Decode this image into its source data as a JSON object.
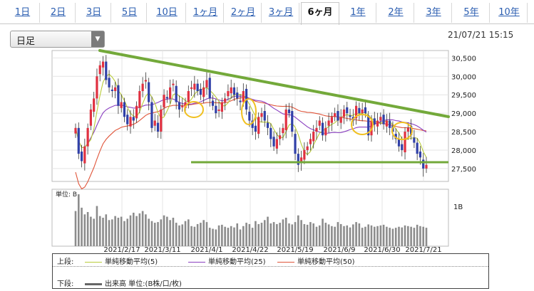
{
  "tabs": [
    "1日",
    "2日",
    "3日",
    "5日",
    "10日",
    "1ヶ月",
    "2ヶ月",
    "3ヶ月",
    "6ヶ月",
    "1年",
    "2年",
    "3年",
    "5年",
    "10年"
  ],
  "active_tab": "6ヶ月",
  "period_select": {
    "value": "日足",
    "arrow": "▼"
  },
  "timestamp": "21/07/21 15:15",
  "volume_panel": {
    "unit_label": "単位: B",
    "scale_label": "1B"
  },
  "legend": {
    "upper_label": "上段:",
    "lower_label": "下段:",
    "ma5": "単純移動平均(5)",
    "ma25": "単純移動平均(25)",
    "ma50": "単純移動平均(50)",
    "volume": "出来高 単位:(B株/口/枚)",
    "colors": {
      "ma5": "#b9cc3a",
      "ma25": "#8a3fc0",
      "ma50": "#e0553a",
      "up": "#e03040",
      "down": "#3040a8",
      "trend": "#73a93a",
      "highlight": "#f0c020",
      "volume": "#8c8c8c"
    }
  },
  "chart_data": {
    "type": "candlestick",
    "y_ticks": [
      30500,
      30000,
      29500,
      29000,
      28500,
      28000,
      27500
    ],
    "ylim": [
      27150,
      30700
    ],
    "x_tick_labels": [
      "2021/2/17",
      "2021/3/11",
      "2021/4/1",
      "2021/4/22",
      "2021/5/19",
      "2021/6/9",
      "2021/6/30",
      "2021/7/21"
    ],
    "closes": [
      28600,
      27900,
      27700,
      28100,
      28600,
      29100,
      29400,
      30000,
      30300,
      30400,
      29900,
      29700,
      29600,
      29700,
      29200,
      29300,
      28900,
      28700,
      28900,
      28800,
      29200,
      29600,
      29800,
      29900,
      29300,
      28600,
      28800,
      28500,
      29100,
      29500,
      29400,
      29700,
      29800,
      29300,
      29100,
      29200,
      29300,
      29600,
      29700,
      29800,
      29600,
      29500,
      29700,
      29900,
      29400,
      29200,
      29000,
      29100,
      29300,
      29400,
      29600,
      29700,
      29500,
      29400,
      29300,
      29600,
      29100,
      28800,
      28600,
      28500,
      28900,
      29000,
      28800,
      28600,
      28300,
      28100,
      28300,
      28400,
      28600,
      29100,
      29000,
      28500,
      27900,
      27600,
      27800,
      28000,
      28100,
      28300,
      28500,
      28600,
      28800,
      28400,
      28600,
      28800,
      28900,
      29000,
      28800,
      28900,
      29100,
      29000,
      28900,
      28800,
      29200,
      29000,
      29100,
      29000,
      28400,
      28800,
      28700,
      28800,
      28900,
      28700,
      28800,
      28600,
      28500,
      28300,
      28100,
      28000,
      28500,
      28600,
      28400,
      28200,
      27900,
      27800,
      27500,
      27600
    ],
    "volumes": [
      1.05,
      1.55,
      1.15,
      0.95,
      1.02,
      0.88,
      0.82,
      1.2,
      0.9,
      0.85,
      0.95,
      0.78,
      0.8,
      0.9,
      0.85,
      0.88,
      0.75,
      0.82,
      0.92,
      1.0,
      0.9,
      0.98,
      1.05,
      0.95,
      0.82,
      0.75,
      0.7,
      0.72,
      0.8,
      0.92,
      0.88,
      0.78,
      0.85,
      0.7,
      0.62,
      0.65,
      0.75,
      0.8,
      0.6,
      0.58,
      0.66,
      0.7,
      0.78,
      0.72,
      0.55,
      0.52,
      0.5,
      0.62,
      0.64,
      0.58,
      0.55,
      0.6,
      0.56,
      0.68,
      0.5,
      0.6,
      0.7,
      0.66,
      0.55,
      0.75,
      0.66,
      0.7,
      0.78,
      0.88,
      0.68,
      0.72,
      0.66,
      0.7,
      0.8,
      0.85,
      0.68,
      0.65,
      0.72,
      0.92,
      0.78,
      0.66,
      0.64,
      0.72,
      0.68,
      0.58,
      0.62,
      0.82,
      0.7,
      0.65,
      0.6,
      0.58,
      0.72,
      0.66,
      0.6,
      0.62,
      0.56,
      0.65,
      0.72,
      0.68,
      0.55,
      0.58,
      0.65,
      0.62,
      0.58,
      0.6,
      0.62,
      0.64,
      0.58,
      0.55,
      0.52,
      0.55,
      0.58,
      0.56,
      0.62,
      0.6,
      0.58,
      0.55,
      0.64,
      0.6,
      0.58,
      0.55
    ],
    "volume_max": 1.7,
    "trend_lines": [
      {
        "from": [
          "start",
          30700
        ],
        "to": [
          "end",
          28900
        ]
      },
      {
        "from": [
          "2021/3/28",
          27550
        ],
        "to": [
          "end",
          27550
        ]
      }
    ]
  }
}
